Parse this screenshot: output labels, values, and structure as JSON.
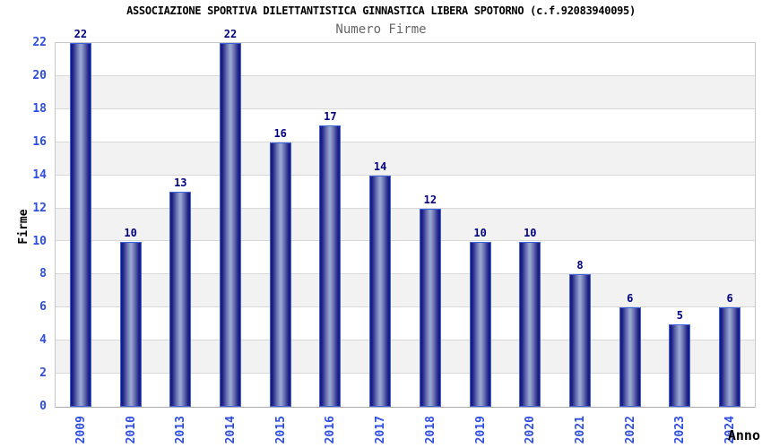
{
  "chart_data": {
    "type": "bar",
    "title": "ASSOCIAZIONE SPORTIVA DILETTANTISTICA GINNASTICA LIBERA SPOTORNO (c.f.92083940095)",
    "subtitle": "Numero Firme",
    "xlabel": "Anno",
    "ylabel": "Firme",
    "categories": [
      "2009",
      "2010",
      "2013",
      "2014",
      "2015",
      "2016",
      "2017",
      "2018",
      "2019",
      "2020",
      "2021",
      "2022",
      "2023",
      "2024"
    ],
    "values": [
      22,
      10,
      13,
      22,
      16,
      17,
      14,
      12,
      10,
      10,
      8,
      6,
      5,
      6
    ],
    "ylim": [
      0,
      22
    ],
    "ytick_step": 2,
    "grid": true,
    "legend": "none",
    "plot_bands_alternating": true
  },
  "colors": {
    "title_color": "#000000",
    "subtitle_color": "#666666",
    "axis_label": "#2d4de0",
    "value_label": "#000080",
    "bar_border": "#3b62e0",
    "bar_dark": "#171772",
    "bar_mid": "#22228a",
    "bar_soft": "#6d78b4",
    "bar_light": "#97a3d0",
    "band_white": "#ffffff",
    "band_gray": "#f2f2f2",
    "grid_line": "#d8d8d8",
    "plot_border": "#c8c8c8",
    "axis_line": "#aaaaaa"
  }
}
